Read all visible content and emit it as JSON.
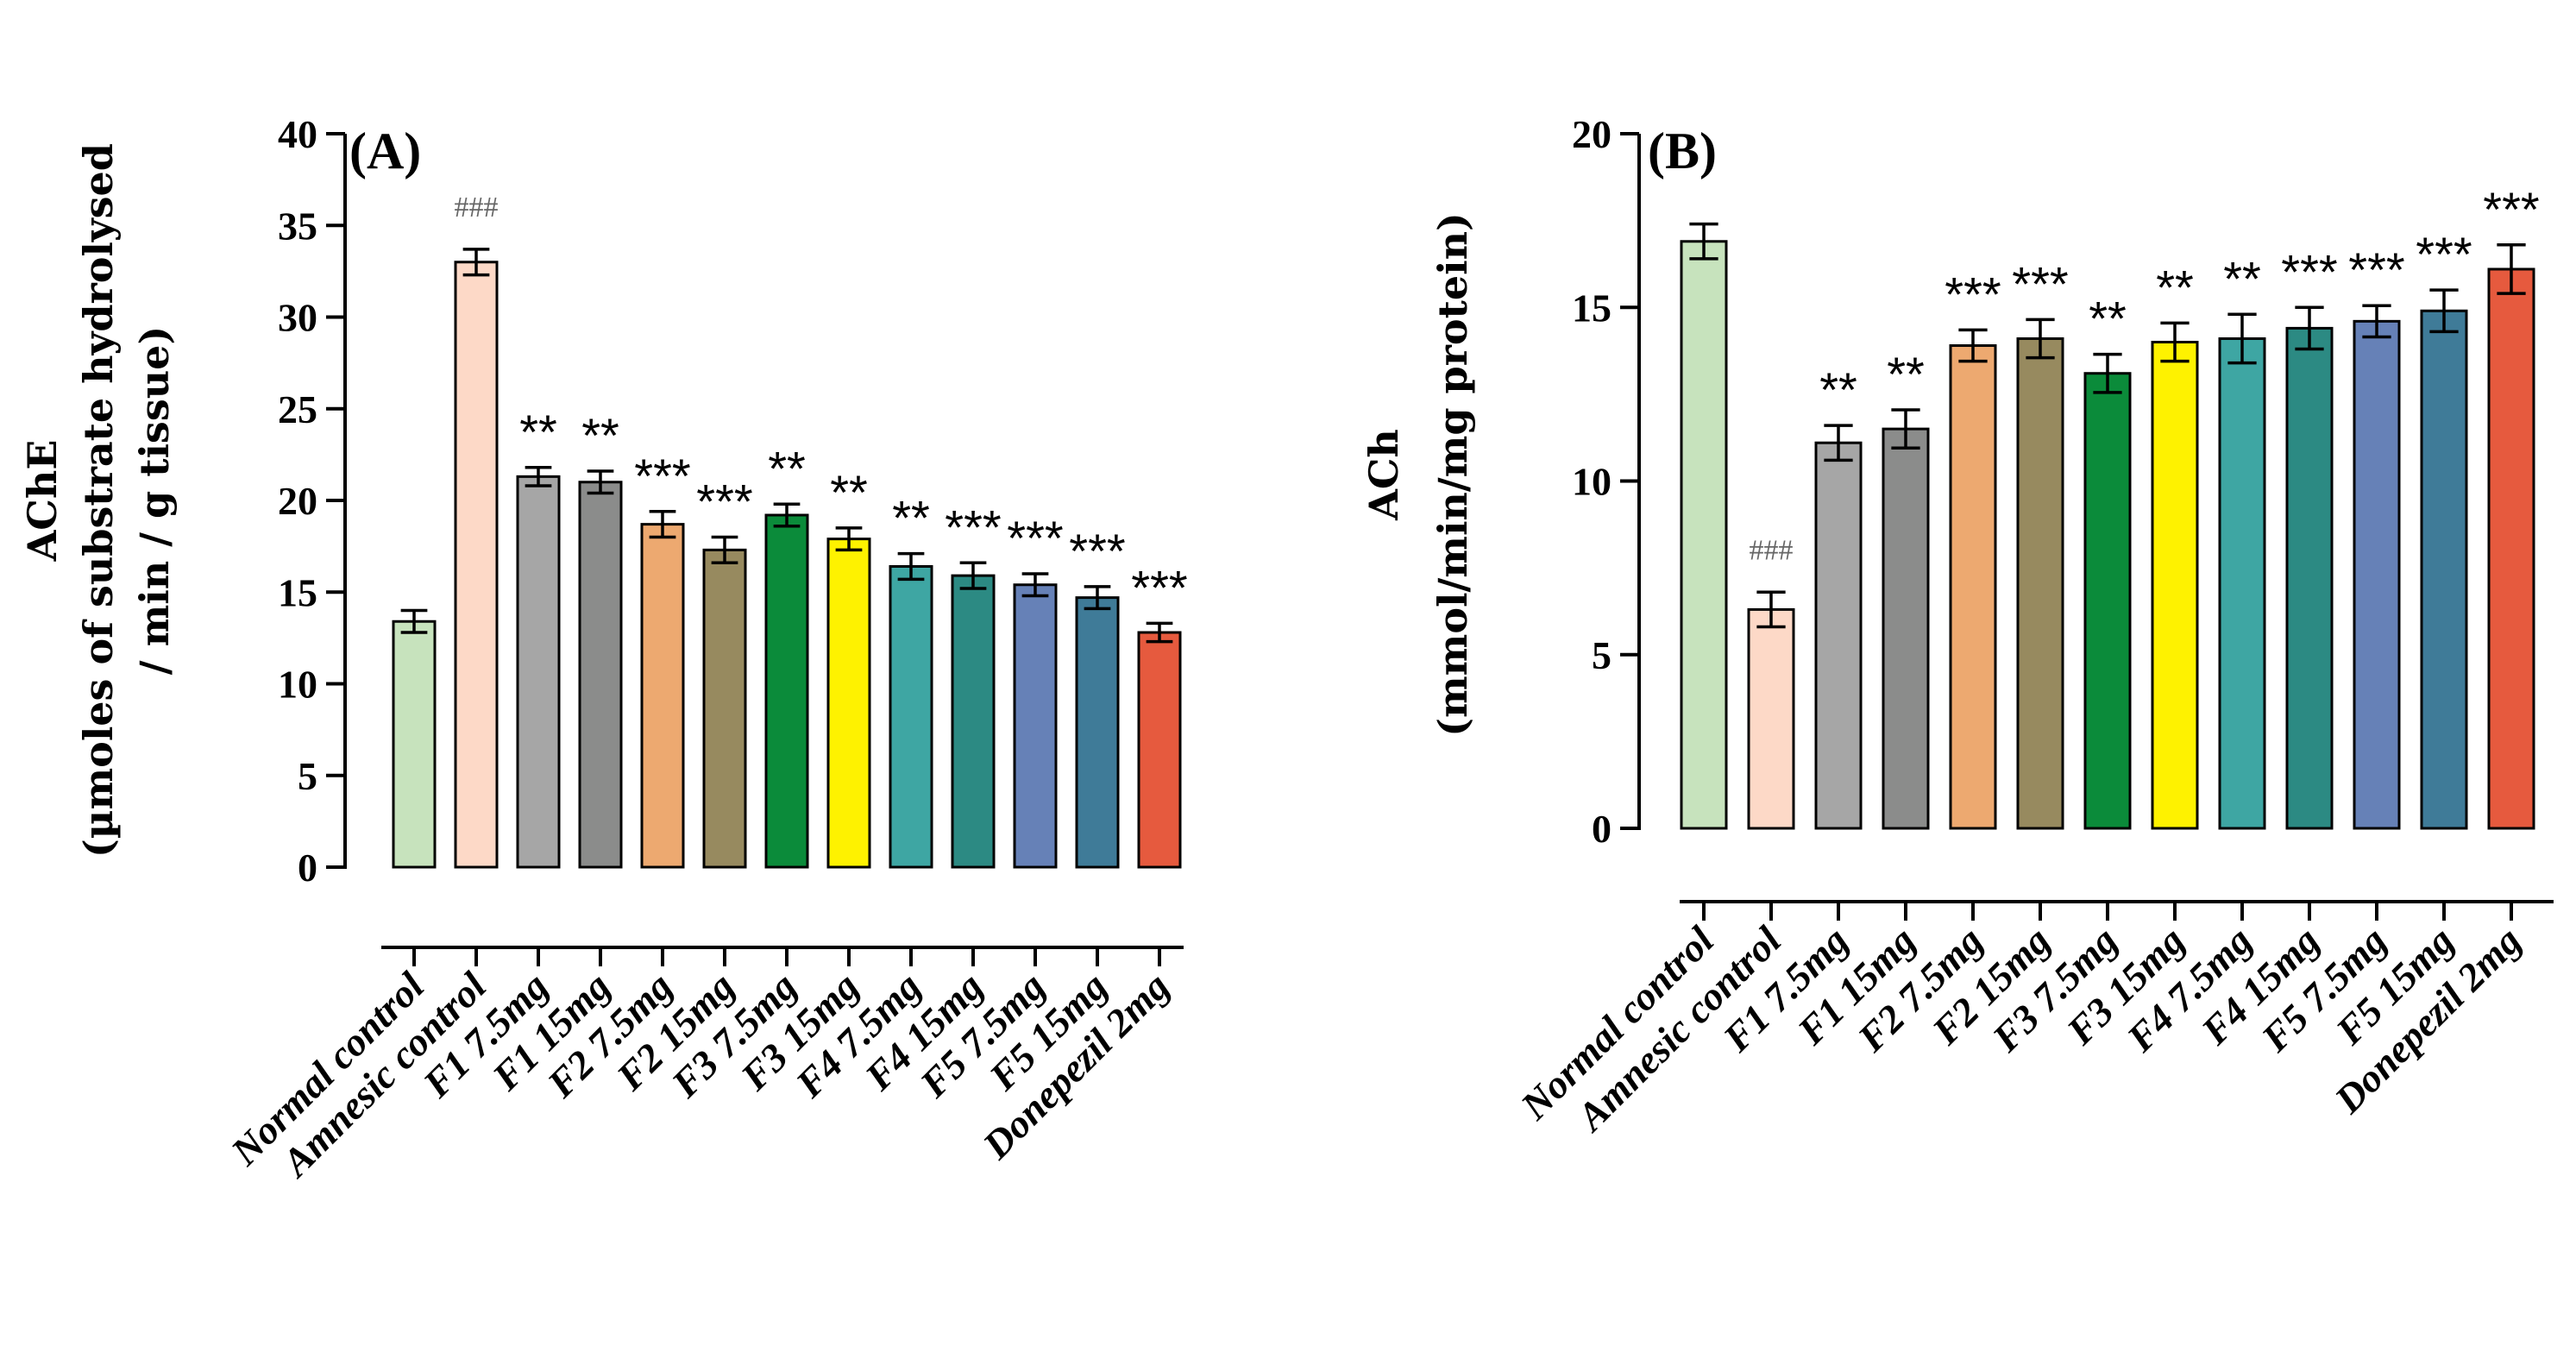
{
  "chart_data": [
    {
      "type": "bar",
      "panel_label": "(A)",
      "ylabel_lines": [
        "AChE",
        "(µmoles of substrate hydrolysed",
        "/ min / g tissue)"
      ],
      "ylim": [
        0,
        40
      ],
      "yticks": [
        "0",
        "5",
        "10",
        "15",
        "20",
        "25",
        "30",
        "35",
        "40"
      ],
      "ytick_values": [
        0,
        5,
        10,
        15,
        20,
        25,
        30,
        35,
        40
      ],
      "categories": [
        "Normal control",
        "Amnesic control",
        "F1 7.5mg",
        "F1 15mg",
        "F2 7.5mg",
        "F2 15mg",
        "F3 7.5mg",
        "F3 15mg",
        "F4 7.5mg",
        "F4 15mg",
        "F5 7.5mg",
        "F5 15mg",
        "Donepezil 2mg"
      ],
      "values": [
        13.4,
        33.0,
        21.3,
        21.0,
        18.7,
        17.3,
        19.2,
        17.9,
        16.4,
        15.9,
        15.4,
        14.7,
        12.8
      ],
      "errors": [
        0.6,
        0.7,
        0.5,
        0.6,
        0.7,
        0.7,
        0.6,
        0.6,
        0.7,
        0.7,
        0.6,
        0.6,
        0.5
      ],
      "annotations": [
        "",
        "###",
        "**",
        "**",
        "***",
        "***",
        "**",
        "**",
        "**",
        "***",
        "***",
        "***",
        "***"
      ],
      "colors": [
        "#c7e3bd",
        "#fdd9c7",
        "#a6a6a6",
        "#8b8c8b",
        "#eda970",
        "#978a5f",
        "#0b8b3a",
        "#fef200",
        "#3ea6a3",
        "#2c8a83",
        "#6681b7",
        "#3f7b98",
        "#e65a3e"
      ]
    },
    {
      "type": "bar",
      "panel_label": "(B)",
      "ylabel_lines": [
        "ACh",
        "(mmol/min/mg protein)"
      ],
      "ylim": [
        0,
        20
      ],
      "yticks": [
        "0",
        "5",
        "10",
        "15",
        "20"
      ],
      "ytick_values": [
        0,
        5,
        10,
        15,
        20
      ],
      "categories": [
        "Normal control",
        "Amnesic control",
        "F1 7.5mg",
        "F1 15mg",
        "F2 7.5mg",
        "F2 15mg",
        "F3 7.5mg",
        "F3 15mg",
        "F4 7.5mg",
        "F4 15mg",
        "F5 7.5mg",
        "F5 15mg",
        "Donepezil 2mg"
      ],
      "values": [
        16.9,
        6.3,
        11.1,
        11.5,
        13.9,
        14.1,
        13.1,
        14.0,
        14.1,
        14.4,
        14.6,
        14.9,
        16.1
      ],
      "errors": [
        0.5,
        0.5,
        0.5,
        0.55,
        0.45,
        0.55,
        0.55,
        0.55,
        0.7,
        0.6,
        0.45,
        0.6,
        0.7
      ],
      "annotations": [
        "",
        "###",
        "**",
        "**",
        "***",
        "***",
        "**",
        "**",
        "**",
        "***",
        "***",
        "***",
        "***"
      ],
      "colors": [
        "#c7e3bd",
        "#fdd9c7",
        "#a6a6a6",
        "#8b8c8b",
        "#eda970",
        "#978a5f",
        "#0b8b3a",
        "#fef200",
        "#3ea6a3",
        "#2c8a83",
        "#6681b7",
        "#3f7b98",
        "#e65a3e"
      ]
    }
  ]
}
